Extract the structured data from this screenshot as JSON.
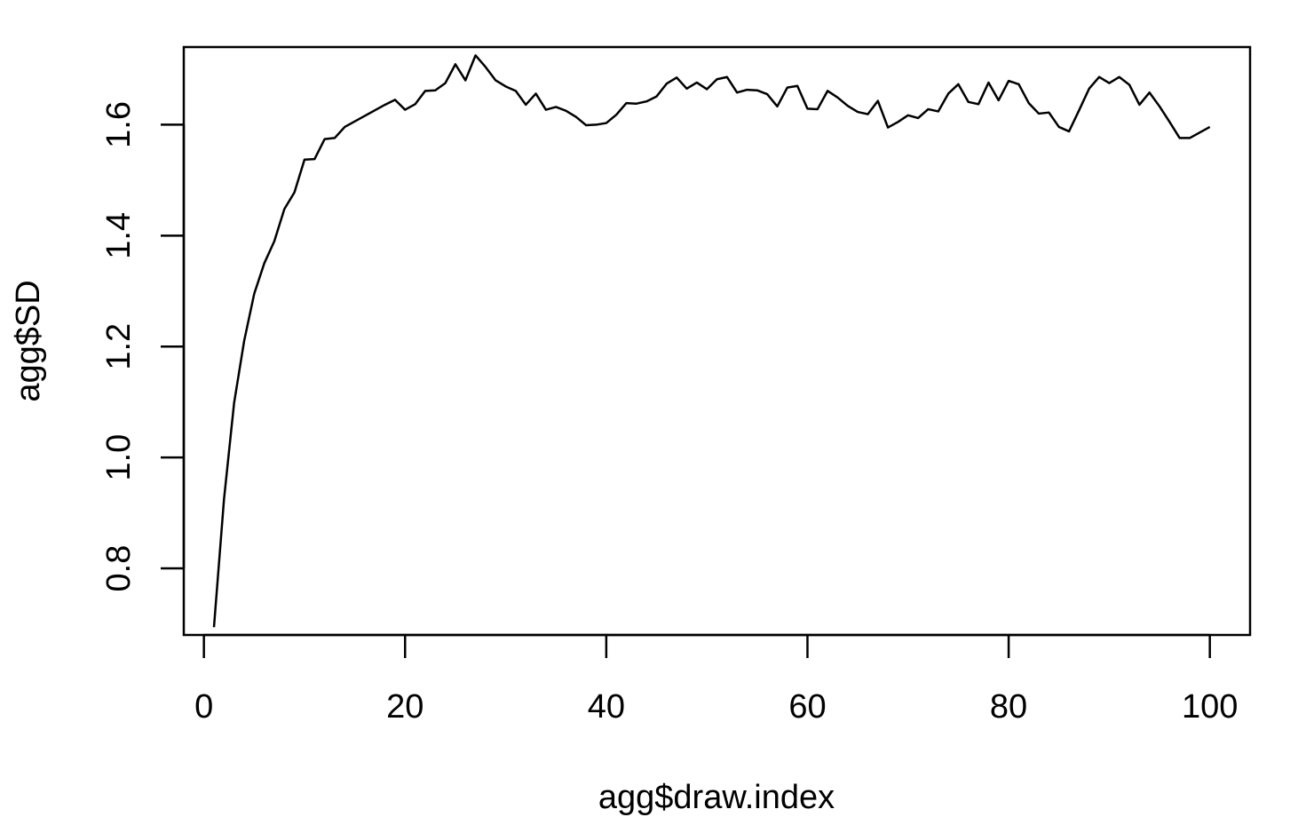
{
  "chart_data": {
    "type": "line",
    "title": "",
    "xlabel": "agg$draw.index",
    "ylabel": "agg$SD",
    "xlim": [
      -2,
      104
    ],
    "ylim": [
      0.68,
      1.74
    ],
    "x_ticks": [
      0,
      20,
      40,
      60,
      80,
      100
    ],
    "y_ticks": [
      0.8,
      1.0,
      1.2,
      1.4,
      1.6
    ],
    "x_tick_labels": [
      "0",
      "20",
      "40",
      "60",
      "80",
      "100"
    ],
    "y_tick_labels": [
      "0.8",
      "1.0",
      "1.2",
      "1.4",
      "1.6"
    ],
    "grid": false,
    "line_color": "#000000",
    "series": [
      {
        "x": [
          1,
          2,
          3,
          4,
          5,
          6,
          7,
          8,
          9,
          10,
          11,
          12,
          13,
          14,
          15,
          16,
          17,
          18,
          19,
          20,
          21,
          22,
          23,
          24,
          25,
          26,
          27,
          28,
          29,
          30,
          31,
          32,
          33,
          34,
          35,
          36,
          37,
          38,
          39,
          40,
          41,
          42,
          43,
          44,
          45,
          46,
          47,
          48,
          49,
          50,
          51,
          52,
          53,
          54,
          55,
          56,
          57,
          58,
          59,
          60,
          61,
          62,
          63,
          64,
          65,
          66,
          67,
          68,
          69,
          70,
          71,
          72,
          73,
          74,
          75,
          76,
          77,
          78,
          79,
          80,
          81,
          82,
          83,
          84,
          85,
          86,
          87,
          88,
          89,
          90,
          91,
          92,
          93,
          94,
          95,
          96,
          97,
          98,
          99,
          100
        ],
        "values": [
          0.694,
          0.925,
          1.098,
          1.21,
          1.295,
          1.35,
          1.39,
          1.448,
          1.478,
          1.537,
          1.538,
          1.574,
          1.576,
          1.596,
          1.606,
          1.616,
          1.626,
          1.636,
          1.645,
          1.627,
          1.637,
          1.661,
          1.662,
          1.675,
          1.709,
          1.68,
          1.725,
          1.704,
          1.68,
          1.669,
          1.661,
          1.636,
          1.656,
          1.627,
          1.632,
          1.625,
          1.614,
          1.599,
          1.6,
          1.603,
          1.618,
          1.639,
          1.638,
          1.642,
          1.651,
          1.674,
          1.685,
          1.665,
          1.676,
          1.664,
          1.682,
          1.686,
          1.658,
          1.663,
          1.662,
          1.655,
          1.633,
          1.667,
          1.67,
          1.629,
          1.628,
          1.661,
          1.649,
          1.634,
          1.623,
          1.619,
          1.643,
          1.595,
          1.605,
          1.617,
          1.612,
          1.628,
          1.624,
          1.656,
          1.673,
          1.641,
          1.637,
          1.676,
          1.644,
          1.679,
          1.673,
          1.639,
          1.62,
          1.622,
          1.596,
          1.588,
          1.626,
          1.665,
          1.686,
          1.675,
          1.686,
          1.672,
          1.636,
          1.658,
          1.633,
          1.605,
          1.576,
          1.576,
          1.586,
          1.596
        ]
      }
    ]
  }
}
